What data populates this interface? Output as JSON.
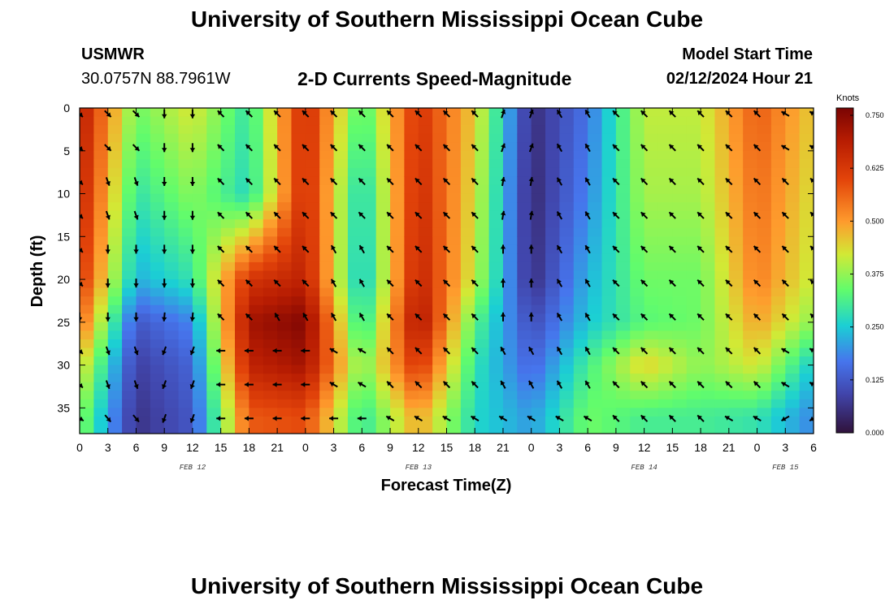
{
  "header": {
    "title": "University of Southern Mississippi Ocean Cube",
    "station_id": "USMWR",
    "station_coords": "30.0757N  88.7961W",
    "subtitle": "2-D Currents Speed-Magnitude",
    "model_start_label": "Model Start Time",
    "model_start_value": "02/12/2024 Hour 21"
  },
  "footer": {
    "title": "University of Southern Mississippi Ocean Cube"
  },
  "chart_data": {
    "type": "heatmap",
    "title": "2-D Currents Speed-Magnitude",
    "xlabel": "Forecast Time(Z)",
    "ylabel": "Depth (ft)",
    "x_tick_labels": [
      "0",
      "3",
      "6",
      "9",
      "12",
      "15",
      "18",
      "21",
      "0",
      "3",
      "6",
      "9",
      "12",
      "15",
      "18",
      "21",
      "0",
      "3",
      "6",
      "9",
      "12",
      "15",
      "18",
      "21",
      "0",
      "3",
      "6"
    ],
    "y_ticks": [
      0,
      5,
      10,
      15,
      20,
      25,
      30,
      35
    ],
    "ylim": [
      0,
      38
    ],
    "date_labels": [
      {
        "text": "FEB 12",
        "hour": 12
      },
      {
        "text": "FEB 13",
        "hour": 36
      },
      {
        "text": "FEB 14",
        "hour": 60
      },
      {
        "text": "FEB 15",
        "hour": 75
      }
    ],
    "colorbar": {
      "unit": "Knots",
      "ticks": [
        "0.000",
        "0.125",
        "0.250",
        "0.375",
        "0.500",
        "0.625",
        "0.750"
      ],
      "min": 0.0,
      "max": 0.75
    },
    "time_hours": [
      0,
      6,
      12,
      18,
      24,
      30,
      36,
      42,
      48,
      54,
      60,
      66,
      72,
      78
    ],
    "depth_ft": [
      0,
      10,
      20,
      25,
      30,
      36
    ],
    "speed_knots": [
      [
        0.68,
        0.66,
        0.62,
        0.55,
        0.44,
        0.36
      ],
      [
        0.34,
        0.28,
        0.22,
        0.12,
        0.08,
        0.06
      ],
      [
        0.42,
        0.36,
        0.28,
        0.18,
        0.14,
        0.12
      ],
      [
        0.28,
        0.26,
        0.62,
        0.7,
        0.66,
        0.56
      ],
      [
        0.64,
        0.64,
        0.66,
        0.74,
        0.7,
        0.58
      ],
      [
        0.3,
        0.24,
        0.22,
        0.26,
        0.34,
        0.28
      ],
      [
        0.62,
        0.64,
        0.66,
        0.7,
        0.62,
        0.48
      ],
      [
        0.44,
        0.42,
        0.4,
        0.32,
        0.28,
        0.26
      ],
      [
        0.05,
        0.04,
        0.05,
        0.1,
        0.14,
        0.2
      ],
      [
        0.16,
        0.18,
        0.22,
        0.24,
        0.3,
        0.34
      ],
      [
        0.4,
        0.38,
        0.34,
        0.32,
        0.44,
        0.3
      ],
      [
        0.4,
        0.38,
        0.34,
        0.34,
        0.36,
        0.3
      ],
      [
        0.56,
        0.54,
        0.52,
        0.48,
        0.42,
        0.28
      ],
      [
        0.44,
        0.42,
        0.4,
        0.36,
        0.24,
        0.18
      ]
    ],
    "vector_direction_deg": [
      [
        135,
        135,
        135,
        180,
        135,
        120
      ],
      [
        135,
        160,
        180,
        180,
        160,
        140
      ],
      [
        180,
        180,
        180,
        185,
        200,
        200
      ],
      [
        315,
        315,
        315,
        315,
        270,
        270
      ],
      [
        315,
        315,
        315,
        330,
        270,
        270
      ],
      [
        315,
        315,
        330,
        330,
        300,
        270
      ],
      [
        315,
        315,
        315,
        315,
        315,
        300
      ],
      [
        315,
        315,
        315,
        315,
        315,
        300
      ],
      [
        20,
        10,
        0,
        0,
        330,
        300
      ],
      [
        330,
        330,
        330,
        330,
        330,
        300
      ],
      [
        315,
        315,
        315,
        315,
        315,
        315
      ],
      [
        315,
        315,
        315,
        315,
        315,
        315
      ],
      [
        315,
        315,
        315,
        315,
        315,
        300
      ],
      [
        300,
        315,
        315,
        315,
        300,
        240
      ]
    ]
  }
}
